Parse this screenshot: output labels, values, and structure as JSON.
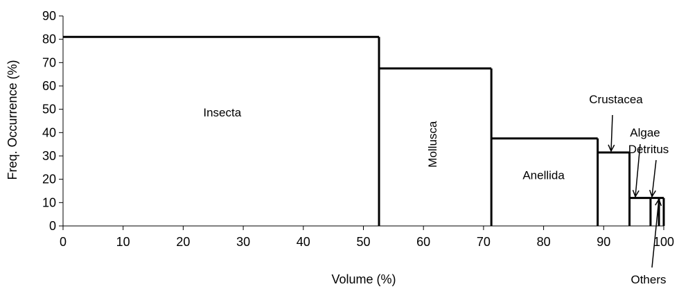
{
  "chart_data": {
    "type": "area",
    "xlabel": "Volume (%)",
    "ylabel": "Freq. Occurrence (%)",
    "xlim": [
      0,
      100
    ],
    "ylim": [
      0,
      90
    ],
    "xticks": [
      0,
      10,
      20,
      30,
      40,
      50,
      60,
      70,
      80,
      90,
      100
    ],
    "yticks": [
      0,
      10,
      20,
      30,
      40,
      50,
      60,
      70,
      80,
      90
    ],
    "grid": false,
    "legend": "none",
    "series": [
      {
        "name": "Insecta",
        "x_start": 0,
        "x_end": 52.6,
        "y": 81
      },
      {
        "name": "Mollusca",
        "x_start": 52.6,
        "x_end": 71.3,
        "y": 67.5
      },
      {
        "name": "Anellida",
        "x_start": 71.3,
        "x_end": 89.0,
        "y": 37.5
      },
      {
        "name": "Crustacea",
        "x_start": 89.0,
        "x_end": 94.3,
        "y": 31.5
      },
      {
        "name": "Algae",
        "x_start": 94.3,
        "x_end": 97.8,
        "y": 12
      },
      {
        "name": "Detritus",
        "x_start": 97.8,
        "x_end": 99.2,
        "y": 12
      },
      {
        "name": "Others",
        "x_start": 99.2,
        "x_end": 100,
        "y": 12
      }
    ]
  }
}
